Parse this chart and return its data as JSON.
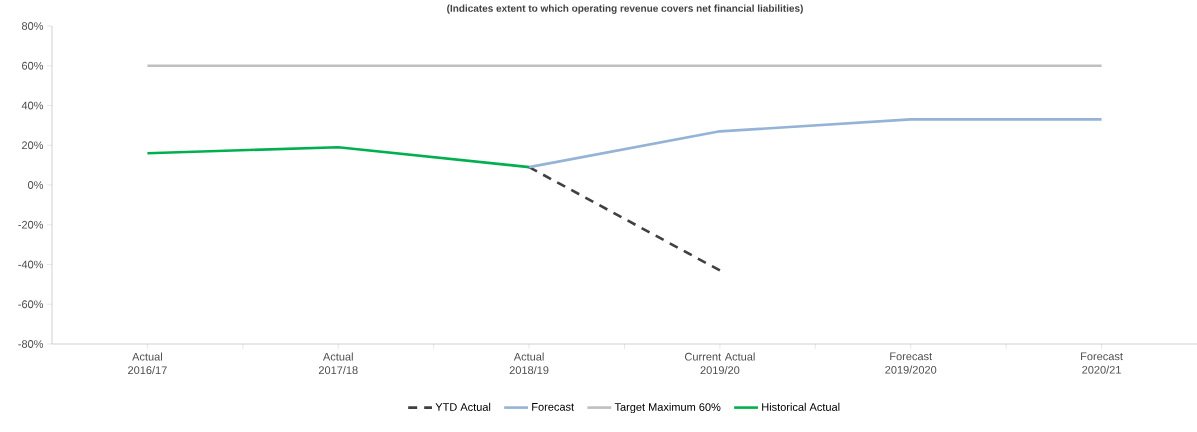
{
  "chart_data": {
    "type": "line",
    "subtitle": "(Indicates extent to which operating revenue covers net financial liabilities)",
    "categories": [
      "Actual 2016/17",
      "Actual 2017/18",
      "Actual 2018/19",
      "Current Actual 2019/20",
      "Forecast 2019/2020",
      "Forecast 2020/21"
    ],
    "series": [
      {
        "name": "YTD Actual",
        "color": "#404040",
        "line_style": "dashed",
        "values": [
          null,
          null,
          9,
          -43,
          null,
          null
        ]
      },
      {
        "name": "Forecast",
        "color": "#95b3d7",
        "line_style": "solid",
        "values": [
          null,
          null,
          9,
          27,
          33,
          33
        ]
      },
      {
        "name": "Target Maximum 60%",
        "color": "#bfbfbf",
        "line_style": "solid",
        "values": [
          60,
          60,
          60,
          60,
          60,
          60
        ]
      },
      {
        "name": "Historical Actual",
        "color": "#00b050",
        "line_style": "solid",
        "values": [
          16,
          19,
          9,
          null,
          null,
          null
        ]
      }
    ],
    "ylim": [
      -80,
      80
    ],
    "yticks": [
      {
        "value": -80,
        "label": "-80%"
      },
      {
        "value": -60,
        "label": "-60%"
      },
      {
        "value": -40,
        "label": "-40%"
      },
      {
        "value": -20,
        "label": "-20%"
      },
      {
        "value": 0,
        "label": "0%"
      },
      {
        "value": 20,
        "label": "20%"
      },
      {
        "value": 40,
        "label": "40%"
      },
      {
        "value": 60,
        "label": "60%"
      },
      {
        "value": 80,
        "label": "80%"
      }
    ],
    "legend": "bottom",
    "grid": false,
    "marker": "none"
  }
}
